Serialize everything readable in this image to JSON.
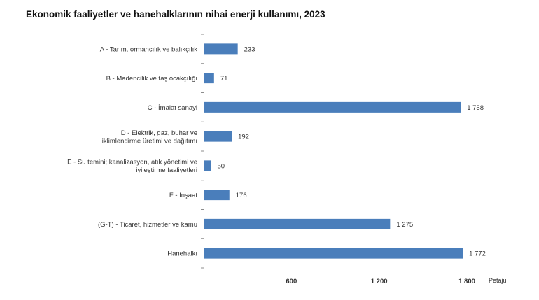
{
  "chart_data": {
    "type": "bar",
    "orientation": "horizontal",
    "title": "Ekonomik faaliyetler ve hanehalklarının nihai enerji kullanımı, 2023",
    "categories": [
      [
        "A - Tarım, ormancılık ve balıkçılık"
      ],
      [
        "B - Madencilik ve taş ocakçılığı"
      ],
      [
        "C - İmalat sanayi"
      ],
      [
        "D - Elektrik, gaz, buhar ve",
        "iklimlendirme üretimi ve dağıtımı"
      ],
      [
        "E - Su temini; kanalizasyon, atık yönetimi ve",
        "iyileştirme faaliyetleri"
      ],
      [
        "F - İnşaat"
      ],
      [
        "(G-T) - Ticaret, hizmetler ve kamu"
      ],
      [
        "Hanehalkı"
      ]
    ],
    "values": [
      233,
      71,
      1758,
      192,
      50,
      176,
      1275,
      1772
    ],
    "value_labels": [
      "233",
      "71",
      "1 758",
      "192",
      "50",
      "176",
      "1 275",
      "1 772"
    ],
    "xlim": [
      0,
      1800
    ],
    "xticks": [
      600,
      1200,
      1800
    ],
    "xtick_labels": [
      "600",
      "1 200",
      "1 800"
    ],
    "xlabel": "Petajul",
    "bar_color": "#4a7ebb",
    "grid": false
  }
}
